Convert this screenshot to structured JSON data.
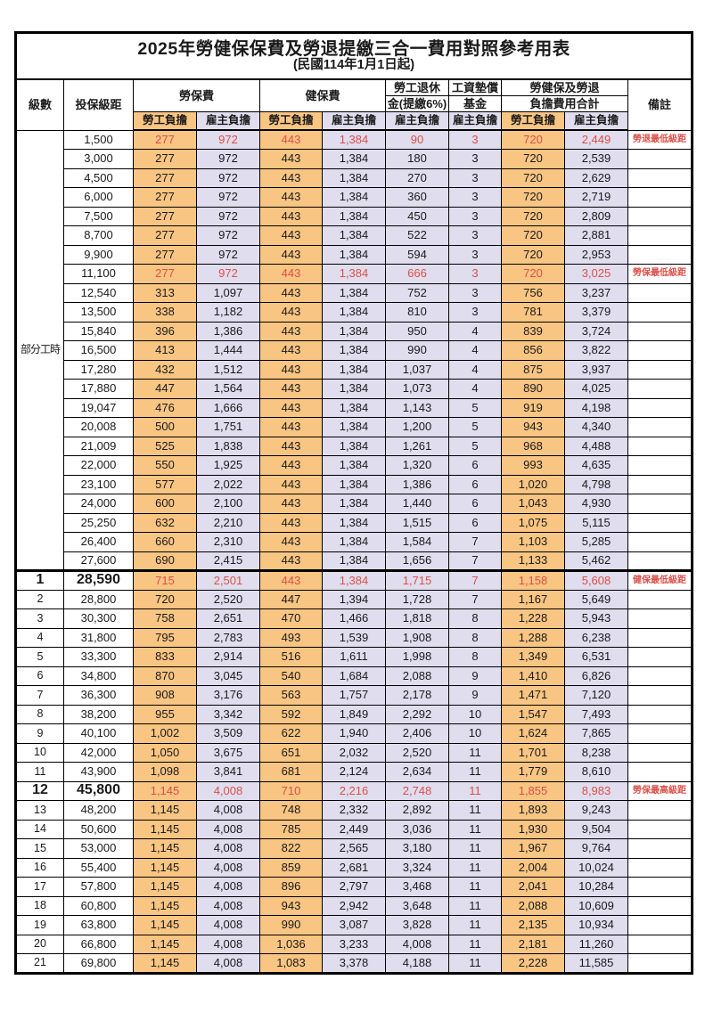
{
  "title": "2025年勞健保保費及勞退提繳三合一費用對照參考用表",
  "subtitle": "(民國114年1月1日起)",
  "colors": {
    "employee_bg": "#f9c583",
    "employer_bg": "#dfddee",
    "highlight_red": "#dd4f48",
    "border": "#000000"
  },
  "header": {
    "col_level": "級數",
    "col_bracket": "投保級距",
    "grp_labor": "勞保費",
    "grp_health": "健保費",
    "grp_pension_l1": "勞工退休",
    "grp_pension_l2": "金(提繳6%)",
    "grp_fund_l1": "工資墊償",
    "grp_fund_l2": "基金",
    "grp_total_l1": "勞健保及勞退",
    "grp_total_l2": "負擔費用合計",
    "sub_employee": "勞工負擔",
    "sub_employer": "雇主負擔",
    "col_remark": "備註"
  },
  "rows": [
    {
      "level": "部分工時",
      "rowspan": 23,
      "cells": [
        "1,500",
        "277",
        "972",
        "443",
        "1,384",
        "90",
        "3",
        "720",
        "2,449"
      ],
      "remark": "勞退最低級距",
      "red": true
    },
    {
      "cells": [
        "3,000",
        "277",
        "972",
        "443",
        "1,384",
        "180",
        "3",
        "720",
        "2,539"
      ]
    },
    {
      "cells": [
        "4,500",
        "277",
        "972",
        "443",
        "1,384",
        "270",
        "3",
        "720",
        "2,629"
      ]
    },
    {
      "cells": [
        "6,000",
        "277",
        "972",
        "443",
        "1,384",
        "360",
        "3",
        "720",
        "2,719"
      ]
    },
    {
      "cells": [
        "7,500",
        "277",
        "972",
        "443",
        "1,384",
        "450",
        "3",
        "720",
        "2,809"
      ]
    },
    {
      "cells": [
        "8,700",
        "277",
        "972",
        "443",
        "1,384",
        "522",
        "3",
        "720",
        "2,881"
      ]
    },
    {
      "cells": [
        "9,900",
        "277",
        "972",
        "443",
        "1,384",
        "594",
        "3",
        "720",
        "2,953"
      ]
    },
    {
      "cells": [
        "11,100",
        "277",
        "972",
        "443",
        "1,384",
        "666",
        "3",
        "720",
        "3,025"
      ],
      "remark": "勞保最低級距",
      "red": true
    },
    {
      "cells": [
        "12,540",
        "313",
        "1,097",
        "443",
        "1,384",
        "752",
        "3",
        "756",
        "3,237"
      ]
    },
    {
      "cells": [
        "13,500",
        "338",
        "1,182",
        "443",
        "1,384",
        "810",
        "3",
        "781",
        "3,379"
      ]
    },
    {
      "cells": [
        "15,840",
        "396",
        "1,386",
        "443",
        "1,384",
        "950",
        "4",
        "839",
        "3,724"
      ]
    },
    {
      "cells": [
        "16,500",
        "413",
        "1,444",
        "443",
        "1,384",
        "990",
        "4",
        "856",
        "3,822"
      ]
    },
    {
      "cells": [
        "17,280",
        "432",
        "1,512",
        "443",
        "1,384",
        "1,037",
        "4",
        "875",
        "3,937"
      ]
    },
    {
      "cells": [
        "17,880",
        "447",
        "1,564",
        "443",
        "1,384",
        "1,073",
        "4",
        "890",
        "4,025"
      ]
    },
    {
      "cells": [
        "19,047",
        "476",
        "1,666",
        "443",
        "1,384",
        "1,143",
        "5",
        "919",
        "4,198"
      ]
    },
    {
      "cells": [
        "20,008",
        "500",
        "1,751",
        "443",
        "1,384",
        "1,200",
        "5",
        "943",
        "4,340"
      ]
    },
    {
      "cells": [
        "21,009",
        "525",
        "1,838",
        "443",
        "1,384",
        "1,261",
        "5",
        "968",
        "4,488"
      ]
    },
    {
      "cells": [
        "22,000",
        "550",
        "1,925",
        "443",
        "1,384",
        "1,320",
        "6",
        "993",
        "4,635"
      ]
    },
    {
      "cells": [
        "23,100",
        "577",
        "2,022",
        "443",
        "1,384",
        "1,386",
        "6",
        "1,020",
        "4,798"
      ]
    },
    {
      "cells": [
        "24,000",
        "600",
        "2,100",
        "443",
        "1,384",
        "1,440",
        "6",
        "1,043",
        "4,930"
      ]
    },
    {
      "cells": [
        "25,250",
        "632",
        "2,210",
        "443",
        "1,384",
        "1,515",
        "6",
        "1,075",
        "5,115"
      ]
    },
    {
      "cells": [
        "26,400",
        "660",
        "2,310",
        "443",
        "1,384",
        "1,584",
        "7",
        "1,103",
        "5,285"
      ]
    },
    {
      "cells": [
        "27,600",
        "690",
        "2,415",
        "443",
        "1,384",
        "1,656",
        "7",
        "1,133",
        "5,462"
      ]
    },
    {
      "level": "1",
      "cells": [
        "28,590",
        "715",
        "2,501",
        "443",
        "1,384",
        "1,715",
        "7",
        "1,158",
        "5,608"
      ],
      "remark": "健保最低級距",
      "red": true,
      "big": true,
      "thickTop": true
    },
    {
      "level": "2",
      "cells": [
        "28,800",
        "720",
        "2,520",
        "447",
        "1,394",
        "1,728",
        "7",
        "1,167",
        "5,649"
      ]
    },
    {
      "level": "3",
      "cells": [
        "30,300",
        "758",
        "2,651",
        "470",
        "1,466",
        "1,818",
        "8",
        "1,228",
        "5,943"
      ]
    },
    {
      "level": "4",
      "cells": [
        "31,800",
        "795",
        "2,783",
        "493",
        "1,539",
        "1,908",
        "8",
        "1,288",
        "6,238"
      ]
    },
    {
      "level": "5",
      "cells": [
        "33,300",
        "833",
        "2,914",
        "516",
        "1,611",
        "1,998",
        "8",
        "1,349",
        "6,531"
      ]
    },
    {
      "level": "6",
      "cells": [
        "34,800",
        "870",
        "3,045",
        "540",
        "1,684",
        "2,088",
        "9",
        "1,410",
        "6,826"
      ]
    },
    {
      "level": "7",
      "cells": [
        "36,300",
        "908",
        "3,176",
        "563",
        "1,757",
        "2,178",
        "9",
        "1,471",
        "7,120"
      ]
    },
    {
      "level": "8",
      "cells": [
        "38,200",
        "955",
        "3,342",
        "592",
        "1,849",
        "2,292",
        "10",
        "1,547",
        "7,493"
      ]
    },
    {
      "level": "9",
      "cells": [
        "40,100",
        "1,002",
        "3,509",
        "622",
        "1,940",
        "2,406",
        "10",
        "1,624",
        "7,865"
      ]
    },
    {
      "level": "10",
      "cells": [
        "42,000",
        "1,050",
        "3,675",
        "651",
        "2,032",
        "2,520",
        "11",
        "1,701",
        "8,238"
      ]
    },
    {
      "level": "11",
      "cells": [
        "43,900",
        "1,098",
        "3,841",
        "681",
        "2,124",
        "2,634",
        "11",
        "1,779",
        "8,610"
      ]
    },
    {
      "level": "12",
      "cells": [
        "45,800",
        "1,145",
        "4,008",
        "710",
        "2,216",
        "2,748",
        "11",
        "1,855",
        "8,983"
      ],
      "remark": "勞保最高級距",
      "red": true,
      "big": true
    },
    {
      "level": "13",
      "cells": [
        "48,200",
        "1,145",
        "4,008",
        "748",
        "2,332",
        "2,892",
        "11",
        "1,893",
        "9,243"
      ]
    },
    {
      "level": "14",
      "cells": [
        "50,600",
        "1,145",
        "4,008",
        "785",
        "2,449",
        "3,036",
        "11",
        "1,930",
        "9,504"
      ]
    },
    {
      "level": "15",
      "cells": [
        "53,000",
        "1,145",
        "4,008",
        "822",
        "2,565",
        "3,180",
        "11",
        "1,967",
        "9,764"
      ]
    },
    {
      "level": "16",
      "cells": [
        "55,400",
        "1,145",
        "4,008",
        "859",
        "2,681",
        "3,324",
        "11",
        "2,004",
        "10,024"
      ]
    },
    {
      "level": "17",
      "cells": [
        "57,800",
        "1,145",
        "4,008",
        "896",
        "2,797",
        "3,468",
        "11",
        "2,041",
        "10,284"
      ]
    },
    {
      "level": "18",
      "cells": [
        "60,800",
        "1,145",
        "4,008",
        "943",
        "2,942",
        "3,648",
        "11",
        "2,088",
        "10,609"
      ]
    },
    {
      "level": "19",
      "cells": [
        "63,800",
        "1,145",
        "4,008",
        "990",
        "3,087",
        "3,828",
        "11",
        "2,135",
        "10,934"
      ]
    },
    {
      "level": "20",
      "cells": [
        "66,800",
        "1,145",
        "4,008",
        "1,036",
        "3,233",
        "4,008",
        "11",
        "2,181",
        "11,260"
      ]
    },
    {
      "level": "21",
      "cells": [
        "69,800",
        "1,145",
        "4,008",
        "1,083",
        "3,378",
        "4,188",
        "11",
        "2,228",
        "11,585"
      ]
    }
  ]
}
